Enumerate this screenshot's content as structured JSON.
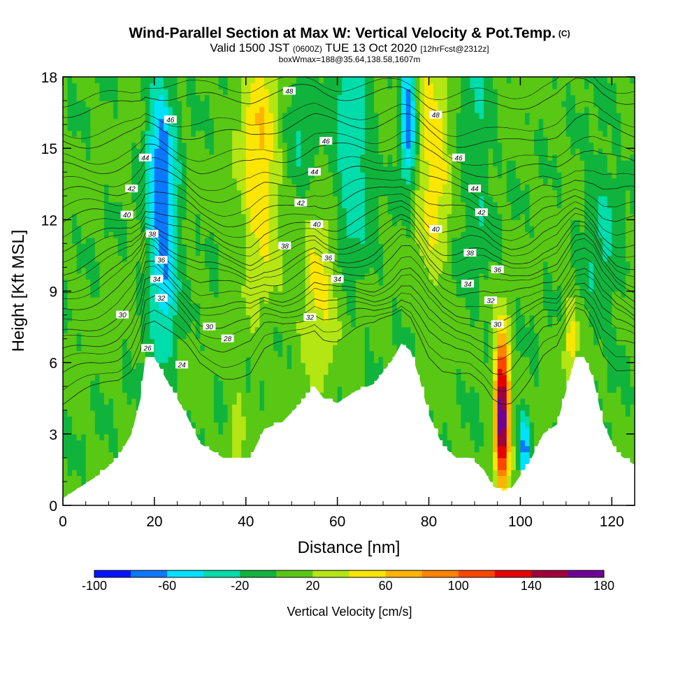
{
  "title": {
    "main": "Wind-Parallel Section at Max W: Vertical Velocity & Pot.Temp.",
    "copyright": "(C)",
    "valid_prefix": "Valid 1500 JST",
    "utc_time": "(0600Z)",
    "valid_date": "TUE 13 Oct 2020",
    "forecast": "[12hrFcst@2312z]",
    "detail": "boxWmax=188@35.64,138.58,1607m"
  },
  "chart_data": {
    "type": "heatmap",
    "title": "Wind-Parallel Section at Max W: Vertical Velocity & Pot.Temp.",
    "xlabel": "Distance [nm]",
    "ylabel": "Height [Kft MSL]",
    "xlim": [
      0,
      125
    ],
    "ylim": [
      0,
      18
    ],
    "xticks": [
      0,
      20,
      40,
      60,
      80,
      100,
      120
    ],
    "yticks": [
      0,
      3,
      6,
      9,
      12,
      15,
      18
    ],
    "colorbar": {
      "label": "Vertical Velocity [cm/s]",
      "ticks": [
        -100,
        -60,
        -20,
        20,
        60,
        100,
        140,
        180
      ],
      "bounds": [
        -100,
        -80,
        -60,
        -40,
        -20,
        0,
        20,
        40,
        60,
        80,
        100,
        120,
        140,
        160,
        180
      ],
      "colors": [
        "#0014ff",
        "#0a78ff",
        "#00e1ff",
        "#00dcaa",
        "#10b43c",
        "#58c814",
        "#b4e614",
        "#fae600",
        "#ffb400",
        "#ff8200",
        "#ff4600",
        "#e60000",
        "#a0003c",
        "#6e0096"
      ]
    },
    "terrain": [
      {
        "x": 0,
        "y": 0.3
      },
      {
        "x": 4,
        "y": 0.8
      },
      {
        "x": 8,
        "y": 1.3
      },
      {
        "x": 12,
        "y": 2.0
      },
      {
        "x": 15,
        "y": 3.0
      },
      {
        "x": 17,
        "y": 4.5
      },
      {
        "x": 18,
        "y": 6.2
      },
      {
        "x": 20,
        "y": 6.2
      },
      {
        "x": 22,
        "y": 5.5
      },
      {
        "x": 24,
        "y": 4.8
      },
      {
        "x": 27,
        "y": 3.8
      },
      {
        "x": 30,
        "y": 2.6
      },
      {
        "x": 35,
        "y": 2.0
      },
      {
        "x": 38,
        "y": 2.0
      },
      {
        "x": 41,
        "y": 2.0
      },
      {
        "x": 44,
        "y": 3.2
      },
      {
        "x": 48,
        "y": 3.5
      },
      {
        "x": 52,
        "y": 4.3
      },
      {
        "x": 55,
        "y": 5.0
      },
      {
        "x": 57,
        "y": 4.5
      },
      {
        "x": 60,
        "y": 4.3
      },
      {
        "x": 64,
        "y": 4.8
      },
      {
        "x": 68,
        "y": 5.1
      },
      {
        "x": 72,
        "y": 6.1
      },
      {
        "x": 74,
        "y": 6.8
      },
      {
        "x": 76,
        "y": 6.5
      },
      {
        "x": 78,
        "y": 5.3
      },
      {
        "x": 80,
        "y": 3.8
      },
      {
        "x": 83,
        "y": 2.5
      },
      {
        "x": 86,
        "y": 2.0
      },
      {
        "x": 89,
        "y": 2.0
      },
      {
        "x": 92,
        "y": 1.5
      },
      {
        "x": 94,
        "y": 0.8
      },
      {
        "x": 96,
        "y": 0.6
      },
      {
        "x": 98,
        "y": 0.7
      },
      {
        "x": 102,
        "y": 1.8
      },
      {
        "x": 105,
        "y": 3.0
      },
      {
        "x": 108,
        "y": 3.4
      },
      {
        "x": 110,
        "y": 4.8
      },
      {
        "x": 112,
        "y": 6.2
      },
      {
        "x": 114,
        "y": 6.2
      },
      {
        "x": 116,
        "y": 5.3
      },
      {
        "x": 118,
        "y": 3.5
      },
      {
        "x": 121,
        "y": 2.2
      },
      {
        "x": 125,
        "y": 1.7
      }
    ],
    "vertical_velocity_features": [
      {
        "x": 22,
        "y": 11,
        "sx": 2.2,
        "sy": 3.2,
        "w": -70
      },
      {
        "x": 21,
        "y": 15.5,
        "sx": 2.0,
        "sy": 2.5,
        "w": -45
      },
      {
        "x": 43,
        "y": 14.5,
        "sx": 3.0,
        "sy": 4.0,
        "w": 55
      },
      {
        "x": 56,
        "y": 9.0,
        "sx": 3.0,
        "sy": 2.5,
        "w": 45
      },
      {
        "x": 63,
        "y": 15.0,
        "sx": 2.8,
        "sy": 3.5,
        "w": -45
      },
      {
        "x": 75.5,
        "y": 16.5,
        "sx": 1.2,
        "sy": 2.0,
        "w": -85
      },
      {
        "x": 81,
        "y": 15.0,
        "sx": 2.5,
        "sy": 4.0,
        "w": 50
      },
      {
        "x": 96,
        "y": 4.0,
        "sx": 1.1,
        "sy": 2.2,
        "w": 180
      },
      {
        "x": 101,
        "y": 2.5,
        "sx": 0.9,
        "sy": 1.0,
        "w": -75
      },
      {
        "x": 111,
        "y": 7.0,
        "sx": 1.2,
        "sy": 1.2,
        "w": 45
      },
      {
        "x": 38,
        "y": 3.0,
        "sx": 1.0,
        "sy": 1.2,
        "w": 40
      },
      {
        "x": 118,
        "y": 11.0,
        "sx": 3.0,
        "sy": 3.0,
        "w": -25
      },
      {
        "x": 90,
        "y": 15.0,
        "sx": 2.5,
        "sy": 4.0,
        "w": -25
      },
      {
        "x": 52,
        "y": 16.0,
        "sx": 2.5,
        "sy": 3.0,
        "w": -20
      }
    ],
    "theta_contours": [
      {
        "value": 24,
        "label": "24",
        "z": 5.8
      },
      {
        "value": 26,
        "label": "26",
        "z": 6.8
      },
      {
        "value": 28,
        "label": "28",
        "z": 7.6
      },
      {
        "value": 30,
        "label": "30",
        "z": 8.3
      },
      {
        "value": 32,
        "label": "32",
        "z": 9.2
      },
      {
        "value": 34,
        "label": "34",
        "z": 9.9
      },
      {
        "value": 36,
        "label": "36",
        "z": 10.6
      },
      {
        "value": 38,
        "label": "38",
        "z": 11.4
      },
      {
        "value": 40,
        "label": "40",
        "z": 12.3
      },
      {
        "value": 42,
        "label": "42",
        "z": 13.3
      },
      {
        "value": 44,
        "label": "44",
        "z": 14.4
      },
      {
        "value": 46,
        "label": "46",
        "z": 15.6
      },
      {
        "value": 48,
        "label": "48",
        "z": 17.0
      }
    ],
    "contour_labels": [
      {
        "text": "48",
        "x": 49.5,
        "y": 17.4
      },
      {
        "text": "46",
        "x": 23.5,
        "y": 16.2
      },
      {
        "text": "46",
        "x": 57.5,
        "y": 15.3
      },
      {
        "text": "48",
        "x": 81.5,
        "y": 16.4
      },
      {
        "text": "44",
        "x": 18.0,
        "y": 14.6
      },
      {
        "text": "46",
        "x": 86.5,
        "y": 14.6
      },
      {
        "text": "44",
        "x": 55.0,
        "y": 14.0
      },
      {
        "text": "42",
        "x": 15.0,
        "y": 13.3
      },
      {
        "text": "44",
        "x": 90.0,
        "y": 13.3
      },
      {
        "text": "42",
        "x": 52.0,
        "y": 12.7
      },
      {
        "text": "42",
        "x": 91.5,
        "y": 12.3
      },
      {
        "text": "40",
        "x": 14.0,
        "y": 12.2
      },
      {
        "text": "40",
        "x": 55.5,
        "y": 11.8
      },
      {
        "text": "40",
        "x": 81.5,
        "y": 11.6
      },
      {
        "text": "38",
        "x": 19.5,
        "y": 11.4
      },
      {
        "text": "38",
        "x": 48.5,
        "y": 10.9
      },
      {
        "text": "38",
        "x": 89.0,
        "y": 10.6
      },
      {
        "text": "36",
        "x": 21.5,
        "y": 10.3
      },
      {
        "text": "36",
        "x": 58.0,
        "y": 10.4
      },
      {
        "text": "36",
        "x": 95.0,
        "y": 9.9
      },
      {
        "text": "34",
        "x": 20.5,
        "y": 9.5
      },
      {
        "text": "34",
        "x": 60.0,
        "y": 9.5
      },
      {
        "text": "34",
        "x": 88.5,
        "y": 9.3
      },
      {
        "text": "32",
        "x": 21.5,
        "y": 8.7
      },
      {
        "text": "32",
        "x": 93.5,
        "y": 8.6
      },
      {
        "text": "30",
        "x": 13.0,
        "y": 8.0
      },
      {
        "text": "32",
        "x": 54.0,
        "y": 7.9
      },
      {
        "text": "30",
        "x": 32.0,
        "y": 7.5
      },
      {
        "text": "30",
        "x": 95.0,
        "y": 7.6
      },
      {
        "text": "28",
        "x": 36.0,
        "y": 7.0
      },
      {
        "text": "26",
        "x": 18.5,
        "y": 6.6
      },
      {
        "text": "24",
        "x": 26.0,
        "y": 5.9
      }
    ],
    "grid": false,
    "legend": "colorbar-bottom"
  }
}
